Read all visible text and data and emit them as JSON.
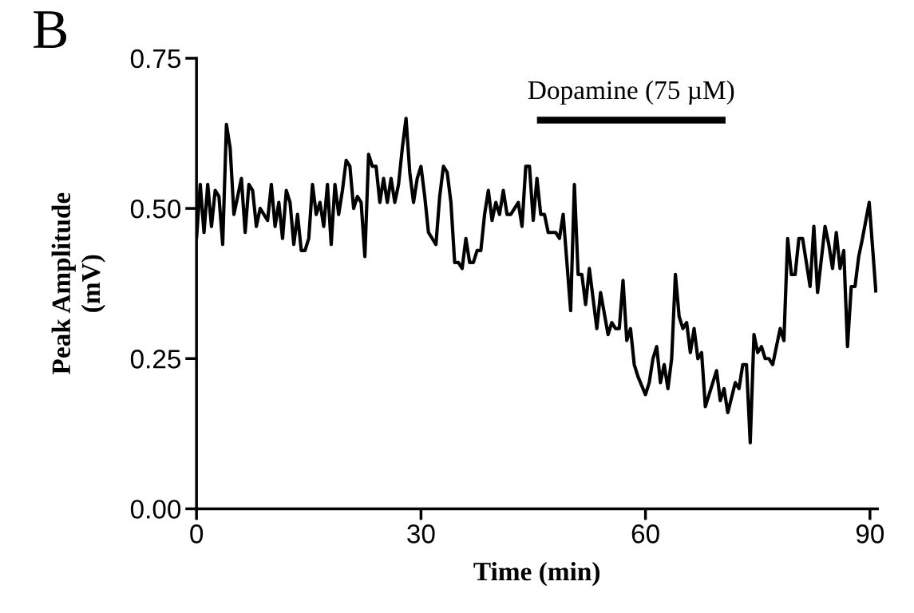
{
  "chart_data": {
    "type": "line",
    "xlabel": "Time (min)",
    "ylabel": "Peak Amplitude\n(mV)",
    "annotations": [
      "B"
    ],
    "x": [
      0,
      0.5,
      1,
      1.5,
      2,
      2.5,
      3,
      3.5,
      4,
      4.5,
      5,
      5.5,
      6,
      6.5,
      7,
      7.5,
      8,
      8.5,
      9,
      9.5,
      10,
      10.5,
      11,
      11.5,
      12,
      12.5,
      13,
      13.5,
      14,
      14.5,
      15,
      15.5,
      16,
      16.5,
      17,
      17.5,
      18,
      18.5,
      19,
      19.5,
      20,
      20.5,
      21,
      21.5,
      22,
      22.5,
      23,
      23.5,
      24,
      24.5,
      25,
      25.5,
      26,
      26.5,
      27,
      27.5,
      28,
      28.5,
      29,
      29.5,
      30,
      30.5,
      31,
      31.5,
      32,
      32.5,
      33,
      33.5,
      34,
      34.5,
      35,
      35.5,
      36,
      36.5,
      37,
      37.5,
      38,
      38.5,
      39,
      39.5,
      40,
      40.5,
      41,
      41.5,
      42,
      42.5,
      43,
      43.5,
      44,
      44.5,
      45,
      45.5,
      46,
      46.5,
      47,
      47.5,
      48,
      48.5,
      49,
      50,
      50.5,
      51,
      51.5,
      52,
      52.5,
      53.5,
      54,
      55,
      55.5,
      56,
      56.5,
      57,
      57.5,
      58,
      58.5,
      59,
      60,
      60.5,
      61,
      61.5,
      62,
      62.5,
      63,
      63.5,
      64,
      64.5,
      65,
      65.5,
      66,
      66.5,
      67,
      67.5,
      68,
      68.5,
      69.5,
      70,
      70.5,
      71,
      72,
      72.5,
      73,
      73.5,
      74,
      74.5,
      75,
      75.5,
      76,
      76.5,
      77,
      78,
      78.5,
      79,
      79.5,
      80,
      80.5,
      81,
      82,
      82.5,
      83,
      84,
      84.5,
      85,
      85.5,
      86,
      86.5,
      87,
      87.5,
      88,
      88.5,
      89,
      89.9,
      90.8
    ],
    "series": [
      {
        "color": "#000000",
        "values": [
          0.45,
          0.54,
          0.46,
          0.54,
          0.47,
          0.53,
          0.52,
          0.44,
          0.64,
          0.6,
          0.49,
          0.52,
          0.55,
          0.46,
          0.54,
          0.53,
          0.47,
          0.5,
          0.49,
          0.48,
          0.54,
          0.47,
          0.51,
          0.45,
          0.53,
          0.51,
          0.44,
          0.49,
          0.43,
          0.43,
          0.45,
          0.54,
          0.49,
          0.51,
          0.47,
          0.54,
          0.44,
          0.54,
          0.49,
          0.53,
          0.58,
          0.57,
          0.5,
          0.52,
          0.51,
          0.42,
          0.59,
          0.57,
          0.57,
          0.51,
          0.55,
          0.51,
          0.55,
          0.51,
          0.54,
          0.6,
          0.65,
          0.56,
          0.51,
          0.55,
          0.57,
          0.52,
          0.46,
          0.45,
          0.44,
          0.52,
          0.57,
          0.56,
          0.51,
          0.41,
          0.41,
          0.4,
          0.45,
          0.41,
          0.41,
          0.43,
          0.43,
          0.49,
          0.53,
          0.48,
          0.51,
          0.49,
          0.53,
          0.49,
          0.49,
          0.5,
          0.51,
          0.47,
          0.57,
          0.57,
          0.48,
          0.55,
          0.49,
          0.49,
          0.46,
          0.46,
          0.46,
          0.45,
          0.49,
          0.33,
          0.54,
          0.39,
          0.39,
          0.34,
          0.4,
          0.3,
          0.36,
          0.29,
          0.31,
          0.3,
          0.3,
          0.38,
          0.28,
          0.3,
          0.24,
          0.22,
          0.19,
          0.21,
          0.25,
          0.27,
          0.21,
          0.24,
          0.2,
          0.25,
          0.39,
          0.32,
          0.3,
          0.31,
          0.26,
          0.3,
          0.25,
          0.26,
          0.17,
          0.19,
          0.23,
          0.18,
          0.2,
          0.16,
          0.21,
          0.2,
          0.24,
          0.24,
          0.11,
          0.29,
          0.26,
          0.27,
          0.25,
          0.25,
          0.24,
          0.3,
          0.28,
          0.45,
          0.39,
          0.39,
          0.45,
          0.45,
          0.37,
          0.47,
          0.36,
          0.47,
          0.44,
          0.4,
          0.46,
          0.4,
          0.43,
          0.27,
          0.37,
          0.37,
          0.42,
          0.45,
          0.51,
          0.36
        ]
      },
      {
        "name": "Dopamine (75 µM)",
        "color": "#000000",
        "x": [
          45.5,
          70.7
        ],
        "values": [
          0.647,
          0.647
        ]
      }
    ],
    "xlim": [
      0,
      91
    ],
    "xticks": [
      0,
      30,
      60,
      90
    ],
    "ylim": [
      0,
      0.75
    ],
    "yticks": [
      {
        "value": 0,
        "label": "0.00"
      },
      {
        "value": 0.25,
        "label": "0.25"
      },
      {
        "value": 0.5,
        "label": "0.50"
      },
      {
        "value": 0.75,
        "label": "0.75"
      }
    ],
    "line_style": "solid",
    "marker": "none",
    "grid": false,
    "legend": false
  }
}
